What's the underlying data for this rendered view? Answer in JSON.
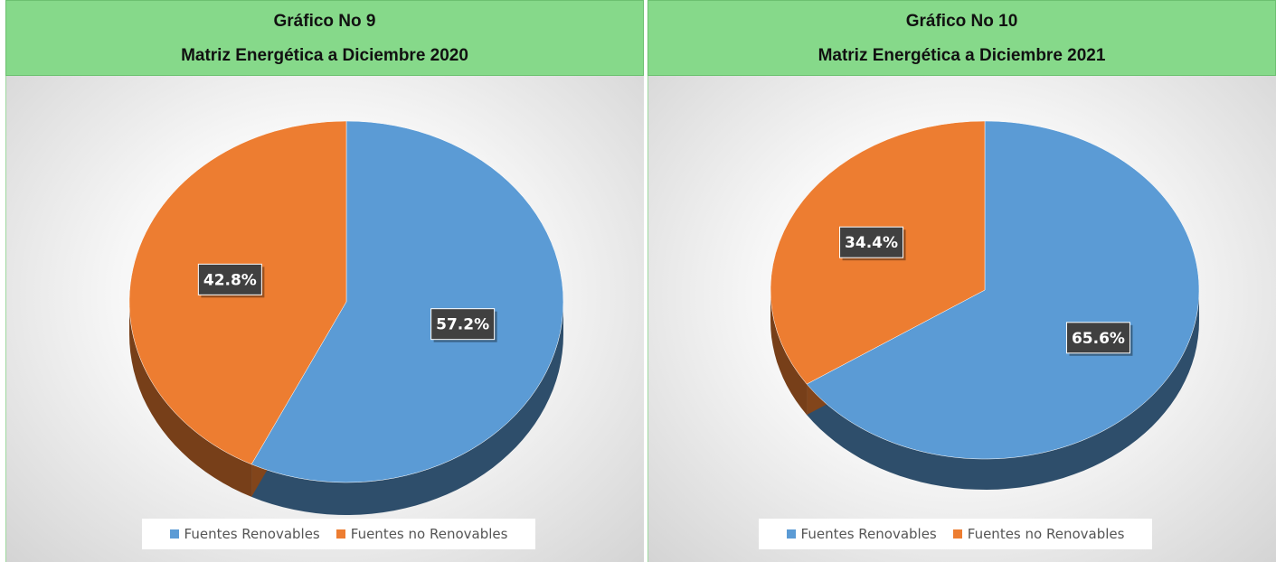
{
  "colors": {
    "renewable": "#5b9bd5",
    "nonrenewable": "#ed7d31",
    "header_bg": "#86d98a",
    "label_bg": "#404040"
  },
  "chart_data": [
    {
      "type": "pie",
      "title_line1": "Gráfico No 9",
      "title_line2": "Matriz Energética a Diciembre 2020",
      "categories": [
        "Fuentes Renovables",
        "Fuentes no Renovables"
      ],
      "values": [
        57.2,
        42.8
      ],
      "labels": [
        "57.2%",
        "42.8%"
      ],
      "legend": "bottom"
    },
    {
      "type": "pie",
      "title_line1": "Gráfico No 10",
      "title_line2": "Matriz Energética a Diciembre 2021",
      "categories": [
        "Fuentes Renovables",
        "Fuentes no Renovables"
      ],
      "values": [
        65.6,
        34.4
      ],
      "labels": [
        "65.6%",
        "34.4%"
      ],
      "legend": "bottom"
    }
  ]
}
